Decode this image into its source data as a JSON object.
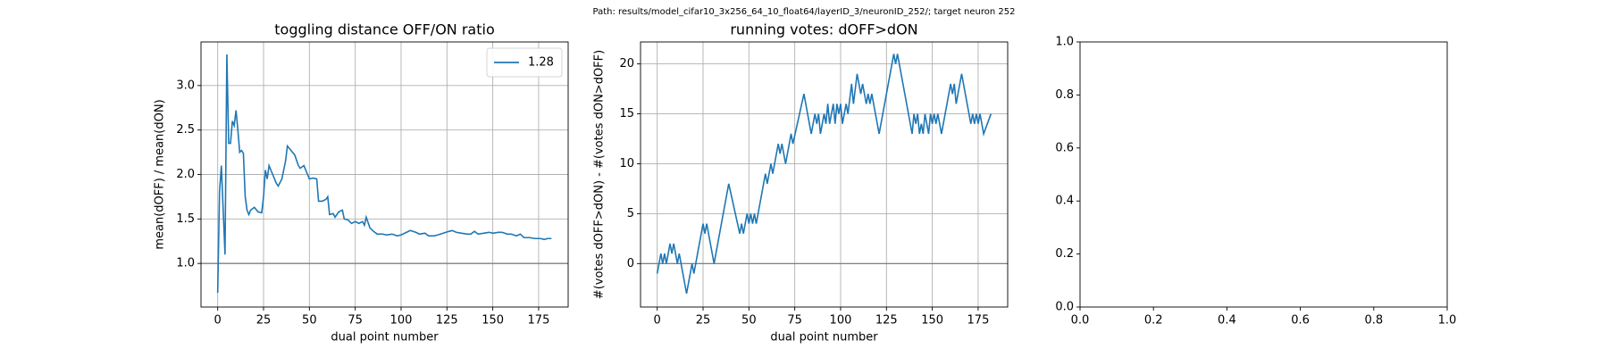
{
  "figure_title": "Path: results/model_cifar10_3x256_64_10_float64/layerID_3/neuronID_252/; target neuron 252",
  "chart_data": [
    {
      "type": "line",
      "title": "toggling distance OFF/ON ratio",
      "xlabel": "dual point number",
      "ylabel": "mean(dOFF) / mean(dON)",
      "x": [
        0,
        1,
        2,
        3,
        4,
        5,
        6,
        7,
        8,
        9,
        10,
        11,
        12,
        13,
        14,
        15,
        16,
        17,
        18,
        20,
        22,
        24,
        25,
        26,
        27,
        28,
        30,
        32,
        33,
        35,
        37,
        38,
        40,
        42,
        44,
        45,
        47,
        49,
        50,
        52,
        54,
        55,
        57,
        59,
        60,
        61,
        63,
        64,
        66,
        68,
        69,
        71,
        73,
        75,
        77,
        79,
        80,
        81,
        83,
        85,
        87,
        90,
        92,
        95,
        98,
        100,
        103,
        105,
        108,
        110,
        113,
        115,
        118,
        120,
        123,
        126,
        128,
        130,
        133,
        136,
        138,
        140,
        142,
        145,
        148,
        150,
        153,
        155,
        158,
        160,
        163,
        165,
        167,
        170,
        173,
        176,
        178,
        180,
        182
      ],
      "series": [
        {
          "name": "1.28",
          "color": "#1f77b4",
          "values": [
            0.67,
            1.8,
            2.1,
            1.6,
            1.1,
            3.35,
            2.35,
            2.35,
            2.6,
            2.55,
            2.72,
            2.5,
            2.25,
            2.27,
            2.24,
            1.75,
            1.6,
            1.55,
            1.6,
            1.63,
            1.58,
            1.57,
            1.75,
            2.05,
            1.95,
            2.1,
            2.0,
            1.9,
            1.87,
            1.95,
            2.15,
            2.32,
            2.27,
            2.22,
            2.1,
            2.07,
            2.1,
            2.0,
            1.95,
            1.96,
            1.95,
            1.7,
            1.7,
            1.72,
            1.75,
            1.55,
            1.56,
            1.52,
            1.58,
            1.6,
            1.5,
            1.49,
            1.45,
            1.47,
            1.45,
            1.47,
            1.43,
            1.52,
            1.4,
            1.36,
            1.33,
            1.33,
            1.32,
            1.33,
            1.31,
            1.32,
            1.35,
            1.37,
            1.35,
            1.33,
            1.34,
            1.31,
            1.31,
            1.32,
            1.34,
            1.36,
            1.37,
            1.35,
            1.34,
            1.33,
            1.33,
            1.36,
            1.33,
            1.34,
            1.35,
            1.34,
            1.35,
            1.35,
            1.33,
            1.33,
            1.31,
            1.33,
            1.29,
            1.29,
            1.28,
            1.28,
            1.27,
            1.28,
            1.28
          ]
        }
      ],
      "xlim": [
        -9.1,
        191.1
      ],
      "ylim": [
        0.51,
        3.49
      ],
      "xticks": [
        0,
        25,
        50,
        75,
        100,
        125,
        150,
        175
      ],
      "yticks": [
        {
          "value": 1,
          "label": "1.0"
        },
        {
          "value": 1.5,
          "label": "1.5"
        },
        {
          "value": 2,
          "label": "2.0"
        },
        {
          "value": 2.5,
          "label": "2.5"
        },
        {
          "value": 3,
          "label": "3.0"
        }
      ],
      "hline": 1,
      "hline_color": "#808080",
      "grid": true,
      "legend": "upper right"
    },
    {
      "type": "line",
      "title": "running votes: dOFF>dON",
      "xlabel": "dual point number",
      "ylabel": "#(votes dOFF>dON) - #(votes dON>dOFF)",
      "x": [
        0,
        2,
        3,
        4,
        5,
        7,
        8,
        9,
        11,
        12,
        14,
        16,
        19,
        20,
        25,
        26,
        27,
        31,
        39,
        45,
        46,
        47,
        49,
        50,
        51,
        52,
        53,
        54,
        56,
        59,
        60,
        62,
        63,
        66,
        67,
        68,
        70,
        73,
        74,
        80,
        84,
        85,
        86,
        87,
        88,
        89,
        91,
        92,
        93,
        94,
        96,
        97,
        98,
        99,
        100,
        101,
        103,
        104,
        106,
        107,
        109,
        111,
        112,
        114,
        115,
        116,
        117,
        118,
        121,
        129,
        130,
        131,
        134,
        139,
        140,
        141,
        142,
        143,
        144,
        145,
        146,
        147,
        148,
        149,
        150,
        151,
        152,
        153,
        155,
        158,
        160,
        161,
        162,
        163,
        166,
        170,
        171,
        172,
        173,
        174,
        175,
        176,
        178,
        182
      ],
      "values": [
        -1,
        1,
        0,
        1,
        0,
        2,
        1,
        2,
        0,
        1,
        -1,
        -3,
        0,
        -1,
        4,
        3,
        4,
        0,
        8,
        3,
        4,
        3,
        5,
        4,
        5,
        4,
        5,
        4,
        6,
        9,
        8,
        10,
        9,
        12,
        11,
        12,
        10,
        13,
        12,
        17,
        13,
        14,
        15,
        14,
        15,
        13,
        15,
        14,
        16,
        14,
        16,
        14,
        16,
        15,
        16,
        14,
        16,
        15,
        18,
        16,
        19,
        17,
        18,
        16,
        17,
        16,
        17,
        16,
        13,
        21,
        20,
        21,
        18,
        13,
        15,
        14,
        15,
        13,
        14,
        13,
        15,
        14,
        13,
        15,
        14,
        15,
        14,
        15,
        13,
        16,
        18,
        17,
        18,
        16,
        19,
        15,
        14,
        15,
        14,
        15,
        14,
        15,
        13,
        15
      ],
      "color": "#1f77b4",
      "xlim": [
        -9.1,
        191.1
      ],
      "ylim": [
        -4.35,
        22.2
      ],
      "xticks": [
        0,
        25,
        50,
        75,
        100,
        125,
        150,
        175
      ],
      "yticks": [
        0,
        5,
        10,
        15,
        20
      ],
      "hline": 0,
      "hline_color": "#808080",
      "grid": true
    },
    {
      "type": "blank",
      "xlim": [
        0,
        1
      ],
      "ylim": [
        0,
        1
      ],
      "xticks": [
        {
          "value": 0,
          "label": "0.0"
        },
        {
          "value": 0.2,
          "label": "0.2"
        },
        {
          "value": 0.4,
          "label": "0.4"
        },
        {
          "value": 0.6,
          "label": "0.6"
        },
        {
          "value": 0.8,
          "label": "0.8"
        },
        {
          "value": 1,
          "label": "1.0"
        }
      ],
      "yticks": [
        {
          "value": 0,
          "label": "0.0"
        },
        {
          "value": 0.2,
          "label": "0.2"
        },
        {
          "value": 0.4,
          "label": "0.4"
        },
        {
          "value": 0.6,
          "label": "0.6"
        },
        {
          "value": 0.8,
          "label": "0.8"
        },
        {
          "value": 1,
          "label": "1.0"
        }
      ],
      "grid": false
    }
  ]
}
